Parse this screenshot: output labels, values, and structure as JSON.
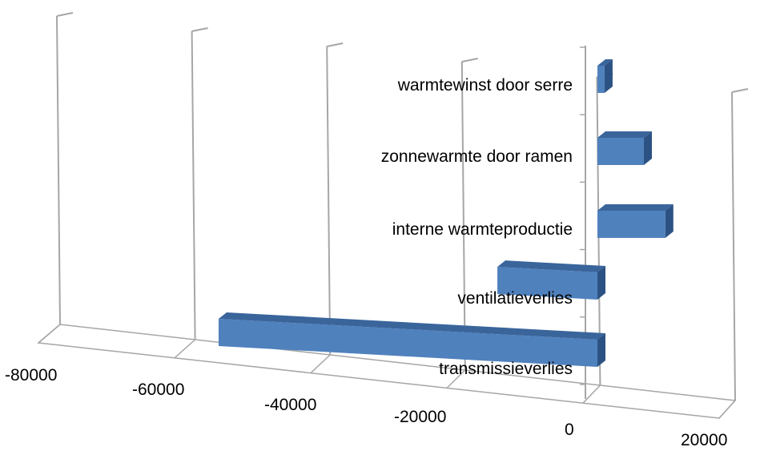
{
  "chart_data": {
    "type": "bar",
    "orientation": "horizontal",
    "style": "3d",
    "categories": [
      "warmtewinst door serre",
      "zonnewarmte door ramen",
      "interne warmteproductie",
      "ventilatieverlies",
      "transmissieverlies"
    ],
    "values": [
      1000,
      6500,
      9500,
      -14000,
      -53000
    ],
    "xlim": [
      -80000,
      20000
    ],
    "xticks": [
      "-80000",
      "-60000",
      "-40000",
      "-20000",
      "0",
      "20000"
    ],
    "grid": true,
    "legend": "none",
    "title": "",
    "xlabel": "",
    "ylabel": "",
    "colors": {
      "bar_front": "#4f81bd",
      "bar_top": "#3a659b",
      "bar_side": "#2c5283",
      "grid": "#a6a6a6",
      "text": "#000000"
    }
  }
}
